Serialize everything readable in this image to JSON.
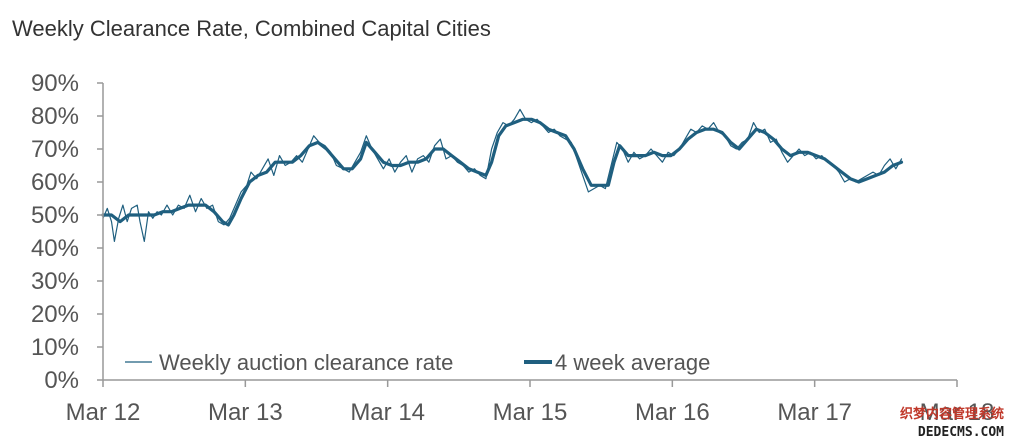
{
  "chart_data": {
    "type": "line",
    "title": "Weekly Clearance Rate, Combined Capital Cities",
    "xlabel": "",
    "ylabel": "",
    "x_ticks": [
      "Mar 12",
      "Mar 13",
      "Mar 14",
      "Mar 15",
      "Mar 16",
      "Mar 17",
      "Mar 18"
    ],
    "y_ticks": [
      "0%",
      "10%",
      "20%",
      "30%",
      "40%",
      "50%",
      "60%",
      "70%",
      "80%",
      "90%"
    ],
    "ylim": [
      0,
      90
    ],
    "xlim": [
      2012.17,
      2018.17
    ],
    "grid": false,
    "legend_position": "bottom-left",
    "series": [
      {
        "name": "Weekly auction clearance rate",
        "color": "#1f5f7f",
        "points": [
          [
            2012.17,
            49
          ],
          [
            2012.2,
            52
          ],
          [
            2012.23,
            48
          ],
          [
            2012.25,
            42
          ],
          [
            2012.28,
            49
          ],
          [
            2012.31,
            53
          ],
          [
            2012.34,
            48
          ],
          [
            2012.37,
            52
          ],
          [
            2012.41,
            53
          ],
          [
            2012.43,
            48
          ],
          [
            2012.46,
            42
          ],
          [
            2012.49,
            51
          ],
          [
            2012.52,
            49
          ],
          [
            2012.55,
            51
          ],
          [
            2012.58,
            50
          ],
          [
            2012.62,
            53
          ],
          [
            2012.66,
            50
          ],
          [
            2012.7,
            53
          ],
          [
            2012.74,
            52
          ],
          [
            2012.78,
            56
          ],
          [
            2012.82,
            51
          ],
          [
            2012.86,
            55
          ],
          [
            2012.9,
            52
          ],
          [
            2012.94,
            53
          ],
          [
            2012.98,
            48
          ],
          [
            2013.02,
            47
          ],
          [
            2013.06,
            49
          ],
          [
            2013.1,
            53
          ],
          [
            2013.14,
            57
          ],
          [
            2013.18,
            59
          ],
          [
            2013.21,
            63
          ],
          [
            2013.25,
            61
          ],
          [
            2013.29,
            64
          ],
          [
            2013.33,
            67
          ],
          [
            2013.37,
            62
          ],
          [
            2013.41,
            68
          ],
          [
            2013.45,
            65
          ],
          [
            2013.49,
            66
          ],
          [
            2013.53,
            68
          ],
          [
            2013.57,
            66
          ],
          [
            2013.61,
            70
          ],
          [
            2013.65,
            74
          ],
          [
            2013.69,
            72
          ],
          [
            2013.73,
            71
          ],
          [
            2013.77,
            69
          ],
          [
            2013.81,
            65
          ],
          [
            2013.86,
            64
          ],
          [
            2013.9,
            63
          ],
          [
            2013.94,
            66
          ],
          [
            2013.98,
            69
          ],
          [
            2014.02,
            74
          ],
          [
            2014.06,
            70
          ],
          [
            2014.1,
            67
          ],
          [
            2014.14,
            64
          ],
          [
            2014.18,
            67
          ],
          [
            2014.22,
            63
          ],
          [
            2014.26,
            66
          ],
          [
            2014.3,
            68
          ],
          [
            2014.34,
            63
          ],
          [
            2014.38,
            67
          ],
          [
            2014.42,
            68
          ],
          [
            2014.46,
            66
          ],
          [
            2014.5,
            71
          ],
          [
            2014.54,
            73
          ],
          [
            2014.58,
            67
          ],
          [
            2014.62,
            68
          ],
          [
            2014.66,
            66
          ],
          [
            2014.7,
            65
          ],
          [
            2014.74,
            63
          ],
          [
            2014.78,
            64
          ],
          [
            2014.82,
            62
          ],
          [
            2014.86,
            61
          ],
          [
            2014.9,
            70
          ],
          [
            2014.94,
            75
          ],
          [
            2014.98,
            78
          ],
          [
            2015.02,
            77
          ],
          [
            2015.06,
            79
          ],
          [
            2015.1,
            82
          ],
          [
            2015.14,
            79
          ],
          [
            2015.18,
            78
          ],
          [
            2015.22,
            79
          ],
          [
            2015.26,
            77
          ],
          [
            2015.3,
            75
          ],
          [
            2015.34,
            76
          ],
          [
            2015.38,
            74
          ],
          [
            2015.42,
            73
          ],
          [
            2015.46,
            72
          ],
          [
            2015.5,
            67
          ],
          [
            2015.54,
            62
          ],
          [
            2015.58,
            57
          ],
          [
            2015.62,
            58
          ],
          [
            2015.66,
            59
          ],
          [
            2015.7,
            58
          ],
          [
            2015.74,
            65
          ],
          [
            2015.78,
            72
          ],
          [
            2015.82,
            70
          ],
          [
            2015.86,
            66
          ],
          [
            2015.9,
            69
          ],
          [
            2015.94,
            67
          ],
          [
            2015.98,
            68
          ],
          [
            2016.02,
            70
          ],
          [
            2016.06,
            68
          ],
          [
            2016.1,
            66
          ],
          [
            2016.14,
            69
          ],
          [
            2016.18,
            68
          ],
          [
            2016.22,
            70
          ],
          [
            2016.26,
            73
          ],
          [
            2016.3,
            76
          ],
          [
            2016.34,
            75
          ],
          [
            2016.38,
            77
          ],
          [
            2016.42,
            76
          ],
          [
            2016.46,
            78
          ],
          [
            2016.5,
            75
          ],
          [
            2016.54,
            74
          ],
          [
            2016.58,
            71
          ],
          [
            2016.62,
            70
          ],
          [
            2016.66,
            72
          ],
          [
            2016.7,
            73
          ],
          [
            2016.74,
            78
          ],
          [
            2016.78,
            75
          ],
          [
            2016.82,
            76
          ],
          [
            2016.86,
            72
          ],
          [
            2016.9,
            73
          ],
          [
            2016.94,
            69
          ],
          [
            2016.98,
            66
          ],
          [
            2017.02,
            68
          ],
          [
            2017.06,
            70
          ],
          [
            2017.1,
            68
          ],
          [
            2017.14,
            69
          ],
          [
            2017.18,
            67
          ],
          [
            2017.22,
            68
          ],
          [
            2017.26,
            66
          ],
          [
            2017.3,
            65
          ],
          [
            2017.34,
            63
          ],
          [
            2017.38,
            60
          ],
          [
            2017.42,
            61
          ],
          [
            2017.46,
            60
          ],
          [
            2017.5,
            61
          ],
          [
            2017.54,
            62
          ],
          [
            2017.58,
            63
          ],
          [
            2017.62,
            62
          ],
          [
            2017.66,
            65
          ],
          [
            2017.7,
            67
          ],
          [
            2017.74,
            64
          ],
          [
            2017.78,
            67
          ]
        ]
      },
      {
        "name": "4 week average",
        "color": "#1f5f7f",
        "points": [
          [
            2012.17,
            50
          ],
          [
            2012.23,
            50
          ],
          [
            2012.29,
            48
          ],
          [
            2012.35,
            50
          ],
          [
            2012.41,
            50
          ],
          [
            2012.47,
            50
          ],
          [
            2012.53,
            50
          ],
          [
            2012.59,
            51
          ],
          [
            2012.65,
            51
          ],
          [
            2012.71,
            52
          ],
          [
            2012.77,
            53
          ],
          [
            2012.83,
            53
          ],
          [
            2012.89,
            53
          ],
          [
            2012.95,
            51
          ],
          [
            2013.01,
            48
          ],
          [
            2013.05,
            47
          ],
          [
            2013.09,
            50
          ],
          [
            2013.14,
            55
          ],
          [
            2013.2,
            60
          ],
          [
            2013.26,
            62
          ],
          [
            2013.32,
            63
          ],
          [
            2013.38,
            66
          ],
          [
            2013.44,
            66
          ],
          [
            2013.5,
            66
          ],
          [
            2013.56,
            68
          ],
          [
            2013.62,
            71
          ],
          [
            2013.68,
            72
          ],
          [
            2013.74,
            70
          ],
          [
            2013.8,
            67
          ],
          [
            2013.86,
            64
          ],
          [
            2013.92,
            64
          ],
          [
            2013.98,
            67
          ],
          [
            2014.02,
            72
          ],
          [
            2014.08,
            69
          ],
          [
            2014.14,
            66
          ],
          [
            2014.2,
            65
          ],
          [
            2014.26,
            65
          ],
          [
            2014.32,
            66
          ],
          [
            2014.38,
            66
          ],
          [
            2014.44,
            67
          ],
          [
            2014.5,
            70
          ],
          [
            2014.56,
            70
          ],
          [
            2014.62,
            68
          ],
          [
            2014.68,
            66
          ],
          [
            2014.74,
            64
          ],
          [
            2014.8,
            63
          ],
          [
            2014.86,
            62
          ],
          [
            2014.9,
            66
          ],
          [
            2014.95,
            74
          ],
          [
            2015.0,
            77
          ],
          [
            2015.06,
            78
          ],
          [
            2015.12,
            79
          ],
          [
            2015.18,
            79
          ],
          [
            2015.24,
            78
          ],
          [
            2015.3,
            76
          ],
          [
            2015.36,
            75
          ],
          [
            2015.42,
            74
          ],
          [
            2015.48,
            70
          ],
          [
            2015.54,
            64
          ],
          [
            2015.6,
            59
          ],
          [
            2015.66,
            59
          ],
          [
            2015.72,
            59
          ],
          [
            2015.76,
            66
          ],
          [
            2015.8,
            71
          ],
          [
            2015.86,
            68
          ],
          [
            2015.92,
            68
          ],
          [
            2015.98,
            68
          ],
          [
            2016.04,
            69
          ],
          [
            2016.1,
            68
          ],
          [
            2016.16,
            68
          ],
          [
            2016.22,
            70
          ],
          [
            2016.28,
            73
          ],
          [
            2016.34,
            75
          ],
          [
            2016.4,
            76
          ],
          [
            2016.46,
            76
          ],
          [
            2016.52,
            75
          ],
          [
            2016.58,
            72
          ],
          [
            2016.64,
            70
          ],
          [
            2016.7,
            73
          ],
          [
            2016.76,
            76
          ],
          [
            2016.82,
            75
          ],
          [
            2016.88,
            73
          ],
          [
            2016.94,
            70
          ],
          [
            2017.0,
            68
          ],
          [
            2017.06,
            69
          ],
          [
            2017.12,
            69
          ],
          [
            2017.18,
            68
          ],
          [
            2017.24,
            67
          ],
          [
            2017.3,
            65
          ],
          [
            2017.36,
            63
          ],
          [
            2017.42,
            61
          ],
          [
            2017.48,
            60
          ],
          [
            2017.54,
            61
          ],
          [
            2017.6,
            62
          ],
          [
            2017.66,
            63
          ],
          [
            2017.72,
            65
          ],
          [
            2017.78,
            66
          ]
        ]
      }
    ]
  },
  "watermark": {
    "line1": "织梦内容管理系统",
    "line2": "DEDECMS.COM"
  }
}
